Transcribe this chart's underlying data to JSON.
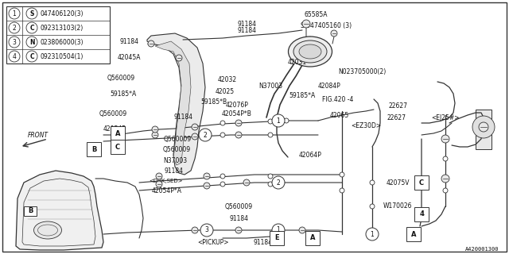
{
  "bg_color": "#ffffff",
  "border_color": "#222222",
  "line_color": "#333333",
  "text_color": "#111111",
  "fig_code": "A420001300",
  "legend": [
    {
      "num": "1",
      "symbol": "S",
      "code": "047406120",
      "qty": "3"
    },
    {
      "num": "2",
      "symbol": "C",
      "code": "092313103",
      "qty": "2"
    },
    {
      "num": "3",
      "symbol": "N",
      "code": "023806000",
      "qty": "3"
    },
    {
      "num": "4",
      "symbol": "C",
      "code": "092310504",
      "qty": "1"
    }
  ]
}
